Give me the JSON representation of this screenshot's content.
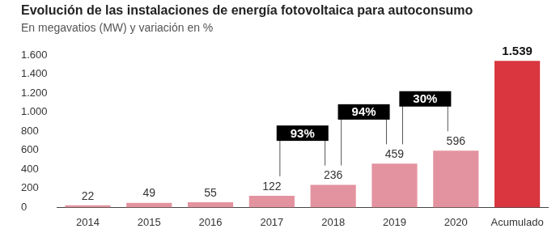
{
  "chart_data": {
    "type": "bar",
    "title": "Evolución de las instalaciones de energía fotovoltaica para autoconsumo",
    "subtitle": "En megavatios (MW) y variación en %",
    "categories": [
      "2014",
      "2015",
      "2016",
      "2017",
      "2018",
      "2019",
      "2020",
      "Acumulado"
    ],
    "values": [
      22,
      49,
      55,
      122,
      236,
      459,
      596,
      1539
    ],
    "value_labels": [
      "22",
      "49",
      "55",
      "122",
      "236",
      "459",
      "596",
      "1.539"
    ],
    "colors": [
      "#e3939f",
      "#e3939f",
      "#e3939f",
      "#e3939f",
      "#e3939f",
      "#e3939f",
      "#e3939f",
      "#d9363f"
    ],
    "ylim": [
      0,
      1600
    ],
    "yticks": [
      0,
      200,
      400,
      600,
      800,
      {
        "value": 1000,
        "label": "1.000"
      },
      {
        "value": 1200,
        "label": "1.200"
      },
      {
        "value": 1400,
        "label": "1.400"
      },
      {
        "value": 1600,
        "label": "1.600"
      }
    ],
    "grid": false,
    "data_labels": true,
    "annotations": [
      {
        "label": "93%",
        "from": "2017",
        "to": "2018"
      },
      {
        "label": "94%",
        "from": "2018",
        "to": "2019"
      },
      {
        "label": "30%",
        "from": "2019",
        "to": "2020"
      }
    ]
  }
}
